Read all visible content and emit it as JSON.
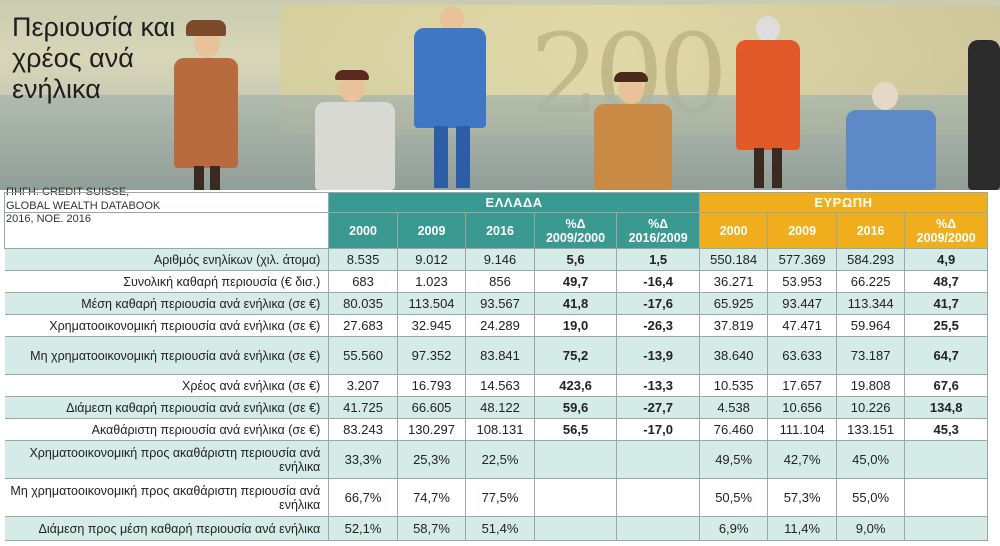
{
  "title": "Περιουσία και χρέος ανά ενήλικα",
  "source": "ΠΗΓΗ: CREDIT SUISSE, GLOBAL WEALTH DATABOOK 2016, ΝΟΕ. 2016",
  "groups": {
    "greece": "ΕΛΛΑΔΑ",
    "europe": "ΕΥΡΩΠΗ"
  },
  "headers": {
    "gr": [
      "2000",
      "2009",
      "2016",
      "%Δ 2009/2000",
      "%Δ 2016/2009"
    ],
    "eu": [
      "2000",
      "2009",
      "2016",
      "%Δ 2009/2000"
    ]
  },
  "rows": [
    {
      "label": "Αριθμός ενηλίκων (χιλ. άτομα)",
      "gr": [
        "8.535",
        "9.012",
        "9.146",
        "5,6",
        "1,5"
      ],
      "eu": [
        "550.184",
        "577.369",
        "584.293",
        "4,9"
      ]
    },
    {
      "label": "Συνολική καθαρή περιουσία (€ δισ.)",
      "gr": [
        "683",
        "1.023",
        "856",
        "49,7",
        "-16,4"
      ],
      "eu": [
        "36.271",
        "53.953",
        "66.225",
        "48,7"
      ]
    },
    {
      "label": "Μέση καθαρή περιουσία ανά ενήλικα (σε €)",
      "gr": [
        "80.035",
        "113.504",
        "93.567",
        "41,8",
        "-17,6"
      ],
      "eu": [
        "65.925",
        "93.447",
        "113.344",
        "41,7"
      ]
    },
    {
      "label": "Χρηματοοικονομική περιουσία ανά ενήλικα (σε €)",
      "gr": [
        "27.683",
        "32.945",
        "24.289",
        "19,0",
        "-26,3"
      ],
      "eu": [
        "37.819",
        "47.471",
        "59.964",
        "25,5"
      ]
    },
    {
      "label": "Μη χρηματοοικονομική περιουσία ανά ενήλικα (σε €)",
      "gr": [
        "55.560",
        "97.352",
        "83.841",
        "75,2",
        "-13,9"
      ],
      "eu": [
        "38.640",
        "63.633",
        "73.187",
        "64,7"
      ]
    },
    {
      "label": "Χρέος ανά ενήλικα (σε €)",
      "gr": [
        "3.207",
        "16.793",
        "14.563",
        "423,6",
        "-13,3"
      ],
      "eu": [
        "10.535",
        "17.657",
        "19.808",
        "67,6"
      ]
    },
    {
      "label": "Διάμεση καθαρή περιουσία ανά ενήλικα (σε €)",
      "gr": [
        "41.725",
        "66.605",
        "48.122",
        "59,6",
        "-27,7"
      ],
      "eu": [
        "4.538",
        "10.656",
        "10.226",
        "134,8"
      ]
    },
    {
      "label": "Ακαθάριστη περιουσία ανά ενήλικα (σε €)",
      "gr": [
        "83.243",
        "130.297",
        "108.131",
        "56,5",
        "-17,0"
      ],
      "eu": [
        "76.460",
        "111.104",
        "133.151",
        "45,3"
      ]
    },
    {
      "label": "Χρηματοοικονομική προς ακαθάριστη περιουσία ανά ενήλικα",
      "gr": [
        "33,3%",
        "25,3%",
        "22,5%",
        "",
        ""
      ],
      "eu": [
        "49,5%",
        "42,7%",
        "45,0%",
        ""
      ]
    },
    {
      "label": "Μη χρηματοοικονομική προς ακαθάριστη περιουσία ανά ενήλικα",
      "gr": [
        "66,7%",
        "74,7%",
        "77,5%",
        "",
        ""
      ],
      "eu": [
        "50,5%",
        "57,3%",
        "55,0%",
        ""
      ]
    },
    {
      "label": "Διάμεση προς μέση καθαρή περιουσία ανά ενήλικα",
      "gr": [
        "52,1%",
        "58,7%",
        "51,4%",
        "",
        ""
      ],
      "eu": [
        "6,9%",
        "11,4%",
        "9,0%",
        ""
      ]
    }
  ]
}
